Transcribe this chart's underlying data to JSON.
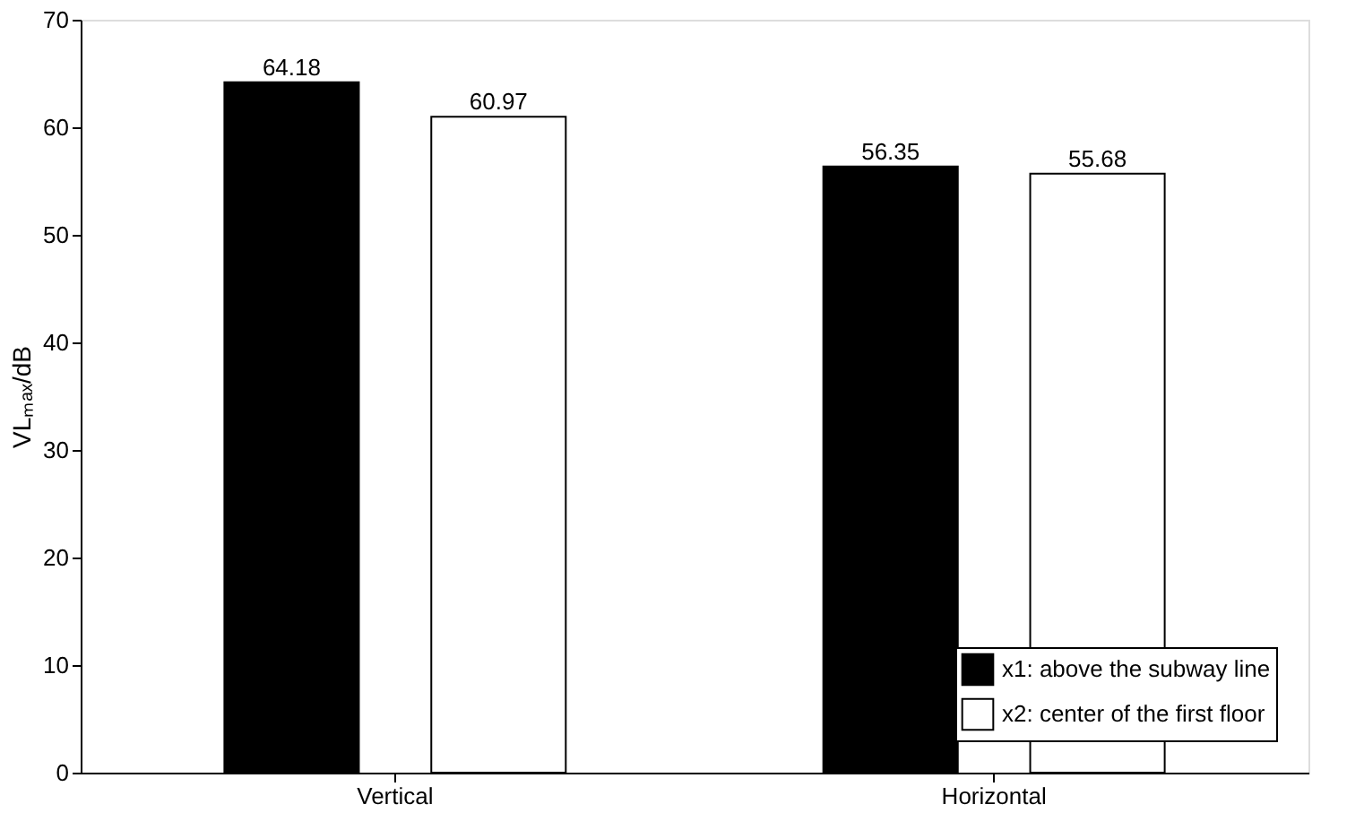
{
  "chart_data": {
    "type": "bar",
    "ylabel": "VLₘₐₓ/dB",
    "categories": [
      "Vertical",
      "Horizontal"
    ],
    "series": [
      {
        "name": "x1: above the subway line",
        "color": "#000000",
        "values": [
          64.18,
          56.35
        ]
      },
      {
        "name": "x2: center of the first floor",
        "color": "#ffffff",
        "values": [
          60.97,
          55.68
        ]
      }
    ],
    "ylim": [
      0,
      70
    ],
    "yticks": [
      0,
      10,
      20,
      30,
      40,
      50,
      60,
      70
    ],
    "grid": false,
    "legend": "bottom right",
    "data_labels": true
  }
}
